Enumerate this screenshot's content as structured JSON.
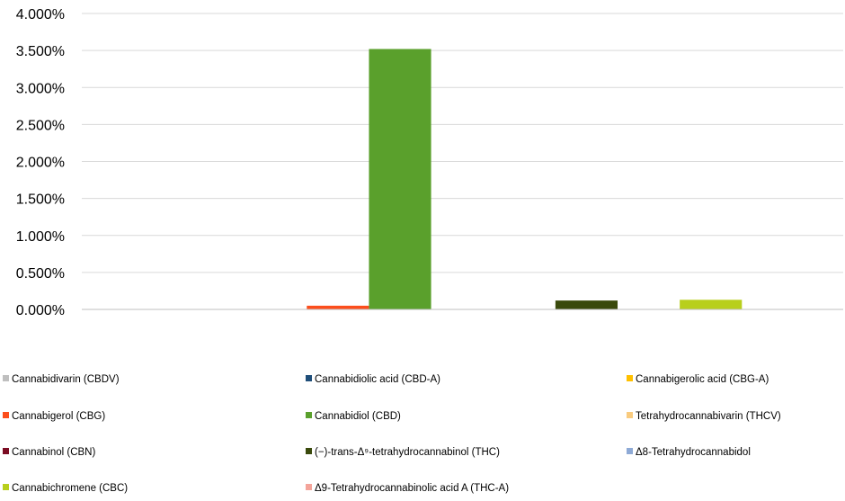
{
  "chart_data": {
    "type": "bar",
    "title": "",
    "xlabel": "",
    "ylabel": "",
    "ylim": [
      0,
      4.0
    ],
    "y_ticks": [
      "0.000%",
      "0.500%",
      "1.000%",
      "1.500%",
      "2.000%",
      "2.500%",
      "3.000%",
      "3.500%",
      "4.000%"
    ],
    "y_tick_values": [
      0,
      0.5,
      1.0,
      1.5,
      2.0,
      2.5,
      3.0,
      3.5,
      4.0
    ],
    "grid": true,
    "legend_position": "bottom",
    "series": [
      {
        "name": "Cannabidivarin (CBDV)",
        "value": 0.0,
        "color": "#bfbfbf"
      },
      {
        "name": "Cannabidiolic acid (CBD-A)",
        "value": 0.0,
        "color": "#1f4e79"
      },
      {
        "name": "Cannabigerolic acid (CBG-A)",
        "value": 0.0,
        "color": "#ffc000"
      },
      {
        "name": "Cannabigerol (CBG)",
        "value": 0.05,
        "color": "#fc4e1c"
      },
      {
        "name": "Cannabidiol (CBD)",
        "value": 3.52,
        "color": "#5aa02c"
      },
      {
        "name": "Tetrahydrocannabivarin (THCV)",
        "value": 0.0,
        "color": "#f9cb7e"
      },
      {
        "name": "Cannabinol (CBN)",
        "value": 0.0,
        "color": "#7b0c23"
      },
      {
        "name": "(−)-trans-Δ⁹-tetrahydrocannabinol (THC)",
        "value": 0.12,
        "color": "#3a4a0c"
      },
      {
        "name": "Δ8-Tetrahydrocannabidol",
        "value": 0.0,
        "color": "#8eaad6"
      },
      {
        "name": "Cannabichromene (CBC)",
        "value": 0.13,
        "color": "#b8cf1c"
      },
      {
        "name": "Δ9-Tetrahydrocannabinolic acid A (THC-A)",
        "value": 0.0,
        "color": "#f4a49a"
      }
    ]
  }
}
